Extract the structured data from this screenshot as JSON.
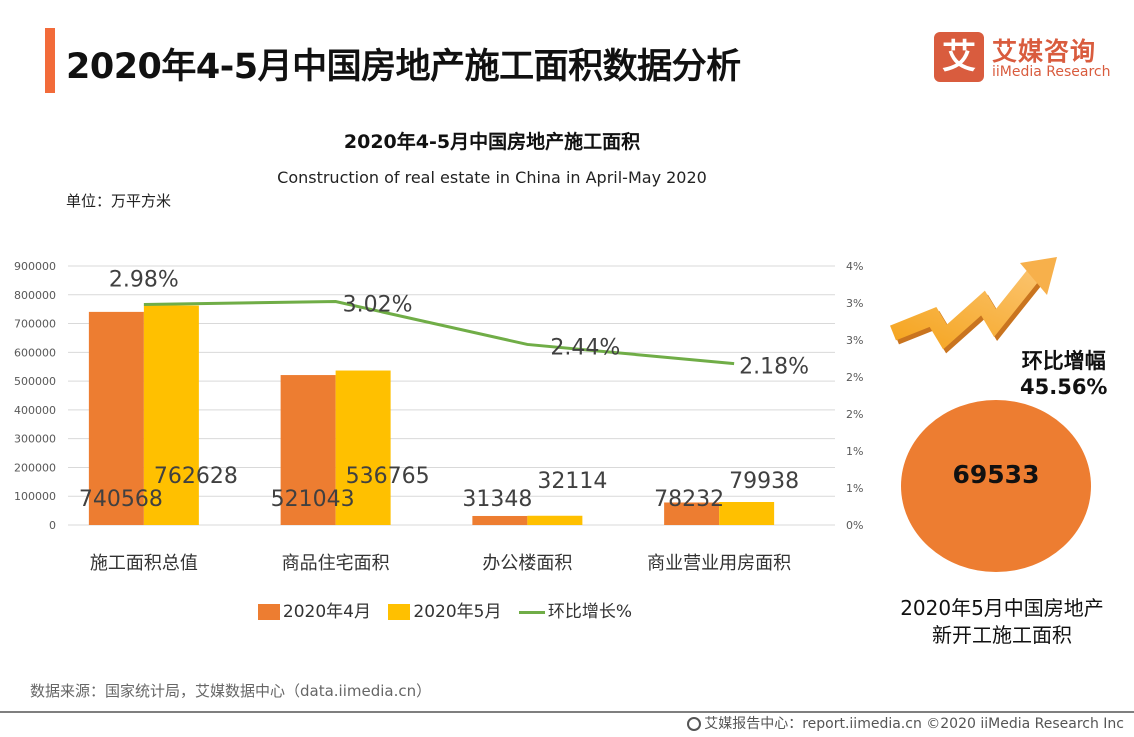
{
  "header": {
    "title": "2020年4-5月中国房地产施工面积数据分析",
    "logo_mark": "艾",
    "logo_cn": "艾媒咨询",
    "logo_en": "iiMedia Research"
  },
  "chart_data": {
    "type": "bar",
    "title": "2020年4-5月中国房地产施工面积",
    "subtitle": "Construction of real estate in China in April-May 2020",
    "unit_label": "单位：万平方米",
    "categories": [
      "施工面积总值",
      "商品住宅面积",
      "办公楼面积",
      "商业营业用房面积"
    ],
    "series": [
      {
        "name": "2020年4月",
        "type": "bar",
        "axis": "left",
        "color": "#ed7d31",
        "values": [
          740568,
          521043,
          31348,
          78232
        ]
      },
      {
        "name": "2020年5月",
        "type": "bar",
        "axis": "left",
        "color": "#ffc000",
        "values": [
          762628,
          536765,
          32114,
          79938
        ]
      },
      {
        "name": "环比增长%",
        "type": "line",
        "axis": "right",
        "color": "#70ad47",
        "values": [
          2.98,
          3.02,
          2.44,
          2.18
        ],
        "labels": [
          "2.98%",
          "3.02%",
          "2.44%",
          "2.18%"
        ]
      }
    ],
    "y_left": {
      "range": [
        0,
        900000
      ],
      "ticks": [
        "0",
        "100000",
        "200000",
        "300000",
        "400000",
        "500000",
        "600000",
        "700000",
        "800000",
        "900000"
      ]
    },
    "y_right": {
      "range": [
        0,
        3.5
      ],
      "ticks": [
        "0%",
        "1%",
        "1%",
        "2%",
        "2%",
        "3%",
        "3%",
        "4%"
      ]
    },
    "grid": true,
    "legend_position": "bottom"
  },
  "side_panel": {
    "growth_label": "环比增幅",
    "growth_value": "45.56%",
    "circle_value": "69533",
    "caption_line1": "2020年5月中国房地产",
    "caption_line2": "新开工施工面积"
  },
  "source": "数据来源：国家统计局，艾媒数据中心（data.iimedia.cn）",
  "footer": "艾媒报告中心：report.iimedia.cn   ©2020  iiMedia Research  Inc"
}
